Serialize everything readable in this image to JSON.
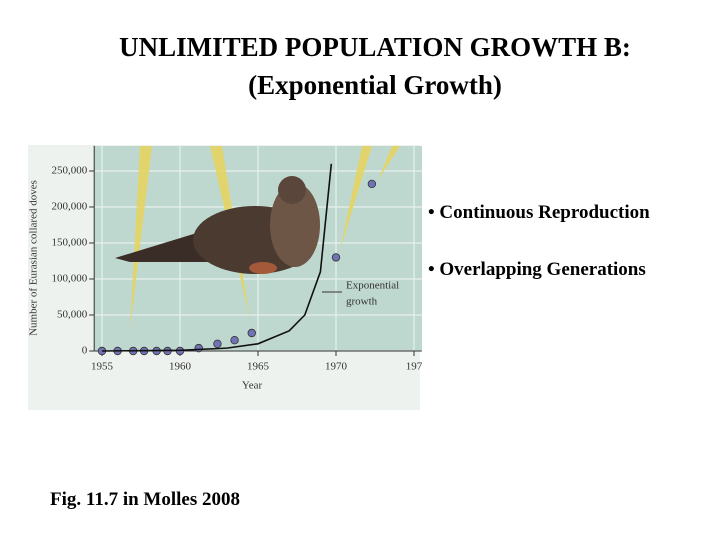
{
  "title_lines": [
    "UNLIMITED POPULATION GROWTH B:",
    "(Exponential  Growth)"
  ],
  "bullets": [
    "• Continuous Reproduction",
    "• Overlapping Generations"
  ],
  "caption": "Fig. 11.7 in Molles 2008",
  "chart_data": {
    "type": "scatter",
    "x_label": "Year",
    "y_label": "Number of Eurasian collared doves",
    "xlim": [
      1954.5,
      1975.5
    ],
    "ylim": [
      0,
      285000
    ],
    "xticks": [
      1955,
      1960,
      1965,
      1970,
      {
        "value": 1975,
        "label": "197"
      }
    ],
    "yticks": [
      {
        "value": 0,
        "label": "0"
      },
      {
        "value": 50000,
        "label": "50,000"
      },
      {
        "value": 100000,
        "label": "100,000"
      },
      {
        "value": 150000,
        "label": "150,000"
      },
      {
        "value": 200000,
        "label": "200,000"
      },
      {
        "value": 250000,
        "label": "250,000"
      }
    ],
    "grid": true,
    "annotation": [
      "Exponential",
      "growth"
    ],
    "series": [
      {
        "type": "scatter",
        "color": "#6f73b3",
        "x": [
          1955,
          1956,
          1957,
          1957.7,
          1958.5,
          1959.2,
          1960,
          1961.2,
          1962.4,
          1963.5,
          1964.6,
          1970,
          1972.3
        ],
        "values": [
          0,
          0,
          0,
          0,
          0,
          0,
          0,
          4000,
          10000,
          15000,
          25000,
          130000,
          232000
        ]
      },
      {
        "type": "line",
        "color": "#111111",
        "x": [
          1955,
          1960,
          1963,
          1965,
          1967,
          1968,
          1969,
          1969.7
        ],
        "values": [
          0,
          1000,
          4000,
          10000,
          28000,
          50000,
          110000,
          260000
        ]
      }
    ]
  }
}
